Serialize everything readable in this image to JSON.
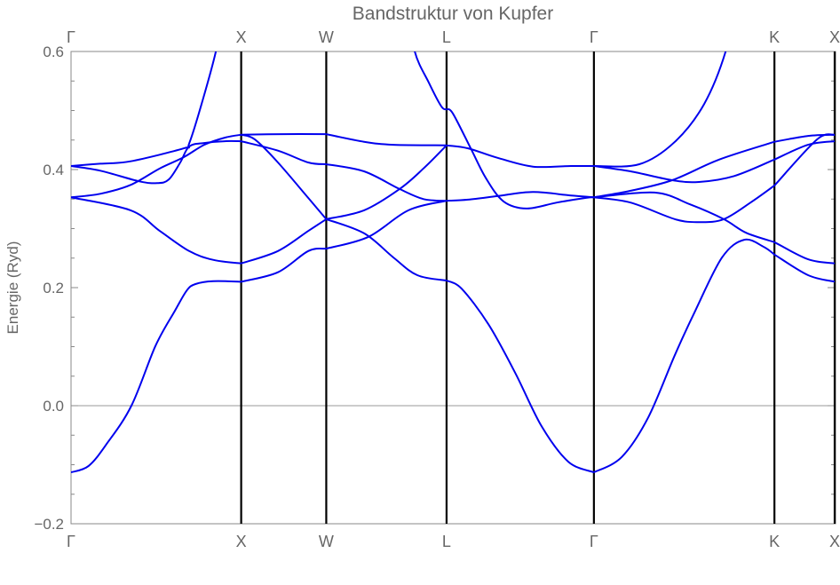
{
  "chart_data": {
    "type": "line",
    "title": "Bandstruktur von Kupfer",
    "xlabel": "",
    "ylabel": "Energie (Ryd)",
    "ylim": [
      -0.2,
      0.6
    ],
    "xlim": [
      0,
      4.488
    ],
    "yticks": [
      -0.2,
      0.0,
      0.2,
      0.4,
      0.6
    ],
    "ytick_labels": [
      "−0.2",
      "0.0",
      "0.2",
      "0.4",
      "0.6"
    ],
    "symmetry_points": [
      {
        "label": "Γ",
        "k": 0
      },
      {
        "label": "X",
        "k": 1.0
      },
      {
        "label": "W",
        "k": 1.5
      },
      {
        "label": "L",
        "k": 2.207
      },
      {
        "label": "Γ",
        "k": 3.073
      },
      {
        "label": "K",
        "k": 4.134
      },
      {
        "label": "X",
        "k": 4.488
      }
    ],
    "zero_line": true,
    "band_color": "#0000ee",
    "segments": [
      {
        "from": "Γ",
        "to": "X",
        "curves": [
          [
            [
              0,
              -0.113
            ],
            [
              0.104,
              -0.102
            ],
            [
              0.209,
              -0.065
            ],
            [
              0.355,
              0
            ],
            [
              0.496,
              0.101
            ],
            [
              0.611,
              0.161
            ],
            [
              0.68,
              0.195
            ],
            [
              0.731,
              0.206
            ],
            [
              0.835,
              0.211
            ],
            [
              1,
              0.21
            ]
          ],
          [
            [
              0,
              0.353
            ],
            [
              0.35,
              0.331
            ],
            [
              0.522,
              0.296
            ],
            [
              0.694,
              0.262
            ],
            [
              0.835,
              0.247
            ],
            [
              1,
              0.241
            ]
          ],
          [
            [
              0,
              0.353
            ],
            [
              0.172,
              0.359
            ],
            [
              0.35,
              0.374
            ],
            [
              0.522,
              0.402
            ],
            [
              0.663,
              0.421
            ],
            [
              0.783,
              0.442
            ],
            [
              0.903,
              0.454
            ],
            [
              1,
              0.459
            ]
          ],
          [
            [
              0,
              0.406
            ],
            [
              0.172,
              0.398
            ],
            [
              0.402,
              0.38
            ],
            [
              0.506,
              0.377
            ],
            [
              0.574,
              0.383
            ],
            [
              0.642,
              0.412
            ],
            [
              0.694,
              0.439
            ],
            [
              0.783,
              0.445
            ],
            [
              0.903,
              0.448
            ],
            [
              1,
              0.448
            ]
          ],
          [
            [
              0,
              0.406
            ],
            [
              0.172,
              0.41
            ],
            [
              0.35,
              0.414
            ],
            [
              0.663,
              0.436
            ],
            [
              0.694,
              0.444
            ],
            [
              0.767,
              0.511
            ],
            [
              0.851,
              0.6
            ],
            [
              0.9,
              0.68
            ]
          ]
        ]
      },
      {
        "from": "X",
        "to": "W",
        "curves": [
          [
            [
              1,
              0.21
            ],
            [
              1.216,
              0.226
            ],
            [
              1.394,
              0.262
            ],
            [
              1.5,
              0.266
            ]
          ],
          [
            [
              1,
              0.241
            ],
            [
              1.216,
              0.262
            ],
            [
              1.394,
              0.296
            ],
            [
              1.5,
              0.316
            ]
          ],
          [
            [
              1,
              0.459
            ],
            [
              1.08,
              0.451
            ],
            [
              1.216,
              0.412
            ],
            [
              1.394,
              0.352
            ],
            [
              1.5,
              0.316
            ]
          ],
          [
            [
              1,
              0.448
            ],
            [
              1.216,
              0.432
            ],
            [
              1.394,
              0.412
            ],
            [
              1.5,
              0.409
            ]
          ],
          [
            [
              1,
              0.459
            ],
            [
              1.25,
              0.46
            ],
            [
              1.5,
              0.46
            ]
          ]
        ]
      },
      {
        "from": "W",
        "to": "L",
        "curves": [
          [
            [
              1.5,
              0.46
            ],
            [
              1.722,
              0.447
            ],
            [
              1.895,
              0.442
            ],
            [
              2.207,
              0.441
            ]
          ],
          [
            [
              1.5,
              0.409
            ],
            [
              1.722,
              0.397
            ],
            [
              1.931,
              0.367
            ],
            [
              2.072,
              0.35
            ],
            [
              2.207,
              0.347
            ]
          ],
          [
            [
              1.5,
              0.316
            ],
            [
              1.722,
              0.331
            ],
            [
              1.931,
              0.367
            ],
            [
              2.072,
              0.402
            ],
            [
              2.207,
              0.441
            ]
          ],
          [
            [
              1.5,
              0.316
            ],
            [
              1.722,
              0.292
            ],
            [
              1.895,
              0.251
            ],
            [
              2.035,
              0.221
            ],
            [
              2.207,
              0.212
            ]
          ],
          [
            [
              1.5,
              0.266
            ],
            [
              1.748,
              0.286
            ],
            [
              1.983,
              0.331
            ],
            [
              2.207,
              0.347
            ]
          ],
          [
            [
              1.98,
              0.68
            ],
            [
              2.02,
              0.6
            ],
            [
              2.103,
              0.547
            ],
            [
              2.176,
              0.507
            ],
            [
              2.207,
              0.502
            ]
          ]
        ]
      },
      {
        "from": "L",
        "to": "Γ",
        "curves": [
          [
            [
              2.207,
              0.502
            ],
            [
              2.244,
              0.495
            ],
            [
              2.349,
              0.436
            ],
            [
              2.437,
              0.386
            ],
            [
              2.542,
              0.346
            ],
            [
              2.678,
              0.334
            ],
            [
              2.855,
              0.344
            ],
            [
              3.027,
              0.352
            ],
            [
              3.073,
              0.353
            ]
          ],
          [
            [
              2.207,
              0.441
            ],
            [
              2.333,
              0.436
            ],
            [
              2.505,
              0.42
            ],
            [
              2.714,
              0.405
            ],
            [
              2.939,
              0.406
            ],
            [
              3.073,
              0.406
            ]
          ],
          [
            [
              2.207,
              0.347
            ],
            [
              2.333,
              0.349
            ],
            [
              2.505,
              0.355
            ],
            [
              2.714,
              0.362
            ],
            [
              2.939,
              0.356
            ],
            [
              3.073,
              0.353
            ]
          ],
          [
            [
              2.207,
              0.212
            ],
            [
              2.296,
              0.198
            ],
            [
              2.453,
              0.138
            ],
            [
              2.61,
              0.056
            ],
            [
              2.766,
              -0.035
            ],
            [
              2.923,
              -0.095
            ],
            [
              3.073,
              -0.113
            ]
          ]
        ]
      },
      {
        "from": "Γ",
        "to": "K",
        "curves": [
          [
            [
              3.073,
              0.406
            ],
            [
              3.34,
              0.409
            ],
            [
              3.549,
              0.447
            ],
            [
              3.721,
              0.511
            ],
            [
              3.847,
              0.6
            ],
            [
              3.9,
              0.68
            ]
          ],
          [
            [
              3.073,
              0.406
            ],
            [
              3.288,
              0.397
            ],
            [
              3.533,
              0.382
            ],
            [
              3.69,
              0.379
            ],
            [
              3.898,
              0.389
            ],
            [
              4.134,
              0.417
            ]
          ],
          [
            [
              3.073,
              0.353
            ],
            [
              3.288,
              0.364
            ],
            [
              3.533,
              0.382
            ],
            [
              3.81,
              0.417
            ],
            [
              4.134,
              0.447
            ]
          ],
          [
            [
              3.073,
              0.353
            ],
            [
              3.429,
              0.361
            ],
            [
              3.638,
              0.341
            ],
            [
              3.836,
              0.316
            ],
            [
              3.967,
              0.293
            ],
            [
              4.134,
              0.277
            ]
          ],
          [
            [
              3.073,
              0.353
            ],
            [
              3.288,
              0.344
            ],
            [
              3.549,
              0.316
            ],
            [
              3.69,
              0.311
            ],
            [
              3.836,
              0.316
            ],
            [
              4.003,
              0.346
            ],
            [
              4.134,
              0.373
            ]
          ],
          [
            [
              3.073,
              -0.113
            ],
            [
              3.236,
              -0.087
            ],
            [
              3.392,
              -0.02
            ],
            [
              3.549,
              0.086
            ],
            [
              3.669,
              0.161
            ],
            [
              3.826,
              0.251
            ],
            [
              3.956,
              0.281
            ],
            [
              4.071,
              0.269
            ],
            [
              4.134,
              0.256
            ]
          ]
        ]
      },
      {
        "from": "K",
        "to": "X",
        "curves": [
          [
            [
              4.134,
              0.417
            ],
            [
              4.332,
              0.442
            ],
            [
              4.488,
              0.448
            ]
          ],
          [
            [
              4.134,
              0.447
            ],
            [
              4.332,
              0.457
            ],
            [
              4.488,
              0.459
            ]
          ],
          [
            [
              4.134,
              0.277
            ],
            [
              4.332,
              0.248
            ],
            [
              4.488,
              0.241
            ]
          ],
          [
            [
              4.134,
              0.373
            ],
            [
              4.384,
              0.451
            ],
            [
              4.488,
              0.459
            ]
          ],
          [
            [
              4.134,
              0.256
            ],
            [
              4.332,
              0.221
            ],
            [
              4.488,
              0.21
            ]
          ]
        ]
      }
    ]
  }
}
